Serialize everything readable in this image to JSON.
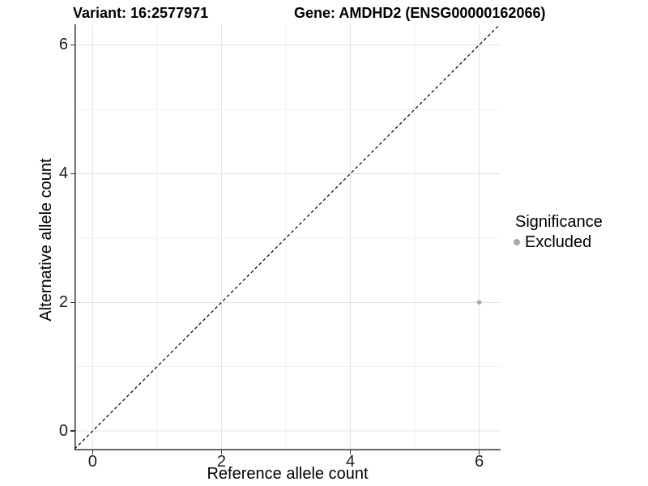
{
  "header": {
    "variant_title": "Variant: 16:2577971",
    "gene_title": "Gene: AMDHD2 (ENSG00000162066)"
  },
  "legend": {
    "title": "Significance",
    "items": [
      {
        "label": "Excluded",
        "color": "#a9a9a9"
      }
    ]
  },
  "chart_data": {
    "type": "scatter",
    "title": "Variant: 16:2577971 — Gene: AMDHD2 (ENSG00000162066)",
    "xlabel": "Reference allele count",
    "ylabel": "Alternative allele count",
    "xlim": [
      -0.28,
      6.33
    ],
    "ylim": [
      -0.3,
      6.32
    ],
    "x_ticks": [
      0,
      2,
      4,
      6
    ],
    "y_ticks": [
      0,
      2,
      4,
      6
    ],
    "x_minor_ticks": [
      1,
      3,
      5
    ],
    "y_minor_ticks": [
      1,
      3,
      5
    ],
    "grid": "major+minor",
    "legend_position": "right-middle",
    "series": [
      {
        "name": "Excluded",
        "color": "#a9a9a9",
        "marker": "circle",
        "points": [
          {
            "x": 6,
            "y": 2
          }
        ]
      }
    ],
    "reference_line": {
      "slope": 1,
      "intercept": 0,
      "style": "dashed",
      "color": "#000000"
    }
  },
  "style": {
    "major_grid_color": "#e4e4e4",
    "minor_grid_color": "#f0f0f0",
    "axis_line_color": "#333333",
    "tick_color": "#333333",
    "point_radius": 2.8
  }
}
